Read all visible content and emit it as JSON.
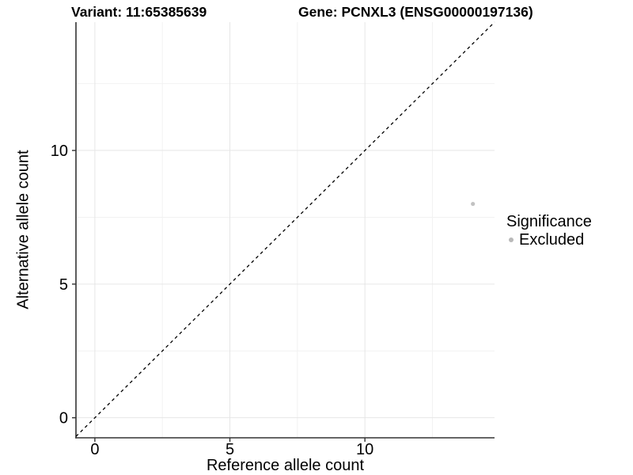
{
  "titles": {
    "variant": "Variant: 11:65385639",
    "gene": "Gene: PCNXL3 (ENSG00000197136)"
  },
  "axes": {
    "x_label": "Reference allele count",
    "y_label": "Alternative allele count"
  },
  "legend": {
    "title": "Significance",
    "items": [
      {
        "label": "Excluded",
        "color": "#b9b9b9"
      }
    ]
  },
  "chart_data": {
    "type": "scatter",
    "title": "Variant: 11:65385639   Gene: PCNXL3 (ENSG00000197136)",
    "xlabel": "Reference allele count",
    "ylabel": "Alternative allele count",
    "xlim": [
      -0.7,
      14.8
    ],
    "ylim": [
      -0.75,
      14.8
    ],
    "x_ticks": [
      0,
      5,
      10
    ],
    "y_ticks": [
      0,
      5,
      10
    ],
    "minor_breaks": [
      2.5,
      7.5,
      12.5
    ],
    "grid": true,
    "grid_major_color": "#e6e6e6",
    "grid_minor_color": "#f2f2f2",
    "axis_color": "#333333",
    "tick_label_color": "#000000",
    "legend_position": "right",
    "series": [
      {
        "name": "Excluded",
        "color": "#c2c2c2",
        "points": [
          {
            "x": 14,
            "y": 8
          }
        ]
      }
    ],
    "reference_line": {
      "type": "identity",
      "style": "dashed",
      "color": "#000000",
      "dash": "4 4"
    }
  }
}
